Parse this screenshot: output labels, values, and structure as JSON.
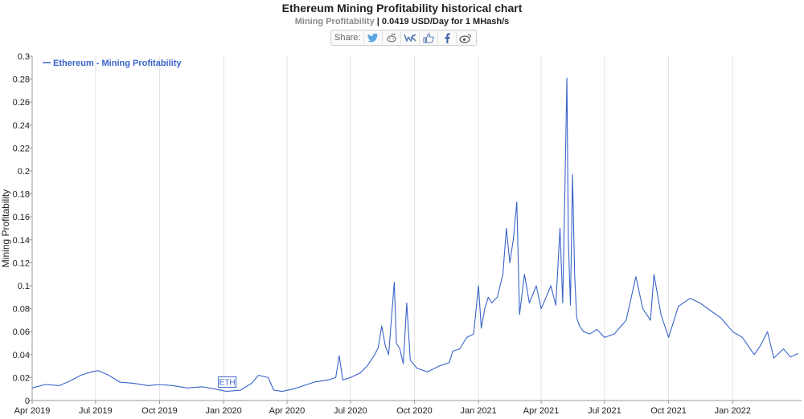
{
  "header": {
    "title": "Ethereum Mining Profitability historical chart",
    "subtitle_metric": "Mining Profitability",
    "subtitle_sep": "|",
    "subtitle_value": "0.0419 USD/Day for 1 MHash/s"
  },
  "share": {
    "label": "Share:",
    "icons": [
      "twitter-icon",
      "reddit-icon",
      "vk-icon",
      "like-icon",
      "facebook-icon",
      "weibo-icon"
    ]
  },
  "colors": {
    "line": "#3a63c9",
    "grid": "#e3e3e3",
    "axis": "#999999"
  },
  "chart_data": {
    "type": "line",
    "title": "Ethereum Mining Profitability historical chart",
    "ylabel": "Mining Profitability",
    "xlabel": "",
    "ylim": [
      0,
      0.3
    ],
    "yticks": [
      0,
      0.02,
      0.04,
      0.06,
      0.08,
      0.1,
      0.12,
      0.14,
      0.16,
      0.18,
      0.2,
      0.22,
      0.24,
      0.26,
      0.28,
      0.3
    ],
    "xticks": [
      "Apr 2019",
      "Jul 2019",
      "Oct 2019",
      "Jan 2020",
      "Apr 2020",
      "Jul 2020",
      "Oct 2020",
      "Jan 2021",
      "Apr 2021",
      "Jul 2021",
      "Oct 2021",
      "Jan 2022"
    ],
    "xlim": [
      "2019-04-01",
      "2022-04-10"
    ],
    "legend": "top-left",
    "grid": true,
    "annotation": "ETH",
    "series": [
      {
        "name": "Ethereum - Mining Profitability",
        "x": [
          "2019-04-01",
          "2019-04-20",
          "2019-05-10",
          "2019-05-25",
          "2019-06-10",
          "2019-06-25",
          "2019-07-05",
          "2019-07-20",
          "2019-08-05",
          "2019-08-25",
          "2019-09-15",
          "2019-10-01",
          "2019-10-20",
          "2019-11-10",
          "2019-12-01",
          "2019-12-20",
          "2020-01-05",
          "2020-01-25",
          "2020-02-10",
          "2020-02-20",
          "2020-03-05",
          "2020-03-13",
          "2020-03-25",
          "2020-04-10",
          "2020-04-25",
          "2020-05-10",
          "2020-05-30",
          "2020-06-10",
          "2020-06-15",
          "2020-06-20",
          "2020-07-01",
          "2020-07-15",
          "2020-07-25",
          "2020-08-05",
          "2020-08-10",
          "2020-08-15",
          "2020-08-20",
          "2020-08-25",
          "2020-08-30",
          "2020-09-02",
          "2020-09-05",
          "2020-09-10",
          "2020-09-15",
          "2020-09-20",
          "2020-09-25",
          "2020-10-05",
          "2020-10-20",
          "2020-11-05",
          "2020-11-20",
          "2020-11-25",
          "2020-12-05",
          "2020-12-15",
          "2020-12-25",
          "2021-01-01",
          "2021-01-05",
          "2021-01-10",
          "2021-01-15",
          "2021-01-20",
          "2021-01-28",
          "2021-02-05",
          "2021-02-10",
          "2021-02-15",
          "2021-02-20",
          "2021-02-25",
          "2021-03-01",
          "2021-03-08",
          "2021-03-15",
          "2021-03-25",
          "2021-04-01",
          "2021-04-08",
          "2021-04-15",
          "2021-04-22",
          "2021-04-28",
          "2021-05-02",
          "2021-05-05",
          "2021-05-08",
          "2021-05-10",
          "2021-05-13",
          "2021-05-16",
          "2021-05-19",
          "2021-05-22",
          "2021-05-26",
          "2021-06-01",
          "2021-06-10",
          "2021-06-20",
          "2021-07-01",
          "2021-07-15",
          "2021-08-01",
          "2021-08-15",
          "2021-08-25",
          "2021-09-05",
          "2021-09-10",
          "2021-09-20",
          "2021-10-01",
          "2021-10-15",
          "2021-11-01",
          "2021-11-15",
          "2021-12-01",
          "2021-12-15",
          "2022-01-01",
          "2022-01-15",
          "2022-02-01",
          "2022-02-10",
          "2022-02-20",
          "2022-03-01",
          "2022-03-15",
          "2022-03-25",
          "2022-04-05"
        ],
        "values": [
          0.011,
          0.014,
          0.013,
          0.017,
          0.022,
          0.025,
          0.026,
          0.022,
          0.016,
          0.015,
          0.013,
          0.014,
          0.013,
          0.011,
          0.012,
          0.01,
          0.008,
          0.009,
          0.015,
          0.022,
          0.02,
          0.009,
          0.008,
          0.01,
          0.013,
          0.016,
          0.018,
          0.02,
          0.039,
          0.018,
          0.02,
          0.024,
          0.03,
          0.04,
          0.046,
          0.065,
          0.048,
          0.04,
          0.08,
          0.103,
          0.05,
          0.045,
          0.032,
          0.085,
          0.035,
          0.028,
          0.025,
          0.03,
          0.033,
          0.043,
          0.045,
          0.055,
          0.058,
          0.1,
          0.063,
          0.08,
          0.09,
          0.085,
          0.09,
          0.11,
          0.15,
          0.12,
          0.14,
          0.173,
          0.075,
          0.11,
          0.085,
          0.1,
          0.08,
          0.09,
          0.1,
          0.083,
          0.15,
          0.085,
          0.18,
          0.281,
          0.14,
          0.083,
          0.197,
          0.11,
          0.072,
          0.065,
          0.06,
          0.058,
          0.062,
          0.055,
          0.058,
          0.07,
          0.108,
          0.08,
          0.07,
          0.11,
          0.075,
          0.055,
          0.082,
          0.089,
          0.085,
          0.078,
          0.072,
          0.06,
          0.055,
          0.04,
          0.048,
          0.06,
          0.037,
          0.045,
          0.038,
          0.041
        ]
      }
    ]
  }
}
